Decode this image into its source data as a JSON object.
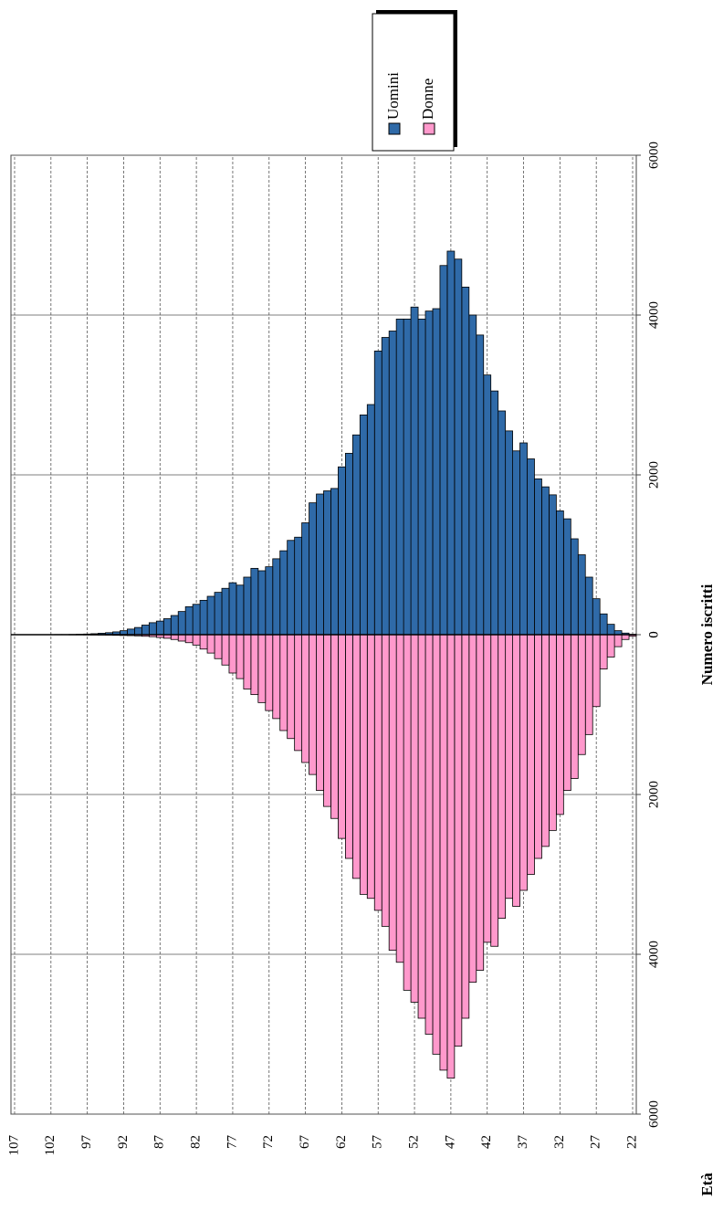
{
  "chart_data": {
    "type": "pyramid",
    "xlabel": "Età",
    "ylabel": "Numero iscritti",
    "x": [
      22,
      23,
      24,
      25,
      26,
      27,
      28,
      29,
      30,
      31,
      32,
      33,
      34,
      35,
      36,
      37,
      38,
      39,
      40,
      41,
      42,
      43,
      44,
      45,
      46,
      47,
      48,
      49,
      50,
      51,
      52,
      53,
      54,
      55,
      56,
      57,
      58,
      59,
      60,
      61,
      62,
      63,
      64,
      65,
      66,
      67,
      68,
      69,
      70,
      71,
      72,
      73,
      74,
      75,
      76,
      77,
      78,
      79,
      80,
      81,
      82,
      83,
      84,
      85,
      86,
      87,
      88,
      89,
      90,
      91,
      92,
      93,
      94,
      95,
      96,
      97,
      98,
      99,
      100,
      101,
      102,
      103,
      104,
      105,
      106,
      107
    ],
    "xlim": [
      21.5,
      107.5
    ],
    "xticks": [
      22,
      27,
      32,
      37,
      42,
      47,
      52,
      57,
      62,
      67,
      72,
      77,
      82,
      87,
      92,
      97,
      102,
      107
    ],
    "ylim": [
      0,
      6000
    ],
    "yticks": [
      0,
      2000,
      4000,
      6000
    ],
    "grid": true,
    "series": [
      {
        "name": "Uomini",
        "color": "#2f6aa8",
        "values": [
          5,
          20,
          50,
          130,
          260,
          450,
          720,
          1000,
          1200,
          1450,
          1550,
          1750,
          1850,
          1950,
          2200,
          2400,
          2300,
          2550,
          2800,
          3050,
          3250,
          3750,
          4000,
          4350,
          4700,
          4800,
          4620,
          4080,
          4050,
          3950,
          4100,
          3950,
          3950,
          3800,
          3720,
          3550,
          2880,
          2750,
          2500,
          2270,
          2100,
          1830,
          1800,
          1760,
          1650,
          1400,
          1220,
          1180,
          1050,
          950,
          850,
          800,
          830,
          720,
          620,
          650,
          580,
          530,
          480,
          430,
          380,
          350,
          290,
          240,
          200,
          170,
          150,
          120,
          90,
          70,
          50,
          35,
          25,
          18,
          12,
          8,
          5,
          3,
          2,
          2,
          1,
          1,
          1,
          0,
          0,
          0
        ]
      },
      {
        "name": "Donne",
        "color": "#ff99cc",
        "values": [
          20,
          60,
          150,
          280,
          430,
          900,
          1250,
          1500,
          1800,
          1950,
          2250,
          2450,
          2650,
          2800,
          3000,
          3200,
          3400,
          3300,
          3550,
          3900,
          3850,
          4200,
          4350,
          4800,
          5150,
          5550,
          5450,
          5250,
          5000,
          4800,
          4600,
          4450,
          4100,
          3950,
          3650,
          3450,
          3300,
          3250,
          3050,
          2800,
          2550,
          2300,
          2150,
          1950,
          1750,
          1600,
          1450,
          1300,
          1200,
          1050,
          950,
          850,
          750,
          680,
          550,
          480,
          380,
          300,
          230,
          180,
          130,
          100,
          80,
          60,
          45,
          35,
          25,
          20,
          15,
          12,
          10,
          8,
          6,
          5,
          4,
          3,
          2,
          2,
          1,
          1,
          1,
          0,
          0,
          0,
          0,
          0
        ]
      }
    ]
  }
}
